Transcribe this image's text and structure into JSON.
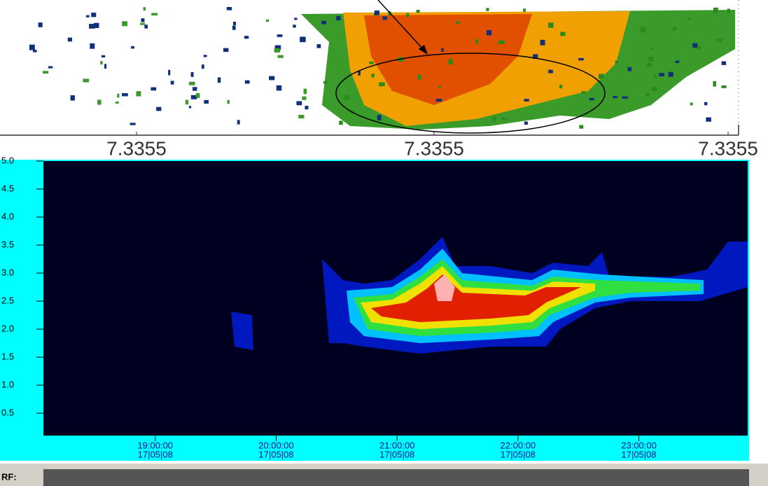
{
  "chart_data": [
    {
      "type": "heatmap",
      "categories": [
        "7.3355",
        "7.3355",
        "7.3355"
      ]
    },
    {
      "type": "heatmap",
      "ylim": [
        0.1,
        5.0
      ],
      "yticks": [
        0.5,
        {
          "value": 1,
          "label": "1.0"
        },
        1.5,
        {
          "value": 2,
          "label": "2.0"
        },
        2.5,
        {
          "value": 3,
          "label": "3.0"
        },
        3.5,
        {
          "value": 4,
          "label": "4.0"
        },
        4.5,
        {
          "value": 5,
          "label": "5.0"
        }
      ],
      "xlim": [
        18.075,
        23.9
      ],
      "xticks": [
        {
          "value": 19,
          "label": "19:00:00"
        },
        {
          "value": 20,
          "label": "20:00:00"
        },
        {
          "value": 21,
          "label": "21:00:00"
        },
        {
          "value": 22,
          "label": "22:00:00"
        },
        {
          "value": 23,
          "label": "23:00:00"
        }
      ],
      "xtick_sublabels": [
        "17|05|08",
        "17|05|08",
        "17|05|08",
        "17|05|08",
        "17|05|08"
      ],
      "footer_label": "RF:"
    }
  ]
}
